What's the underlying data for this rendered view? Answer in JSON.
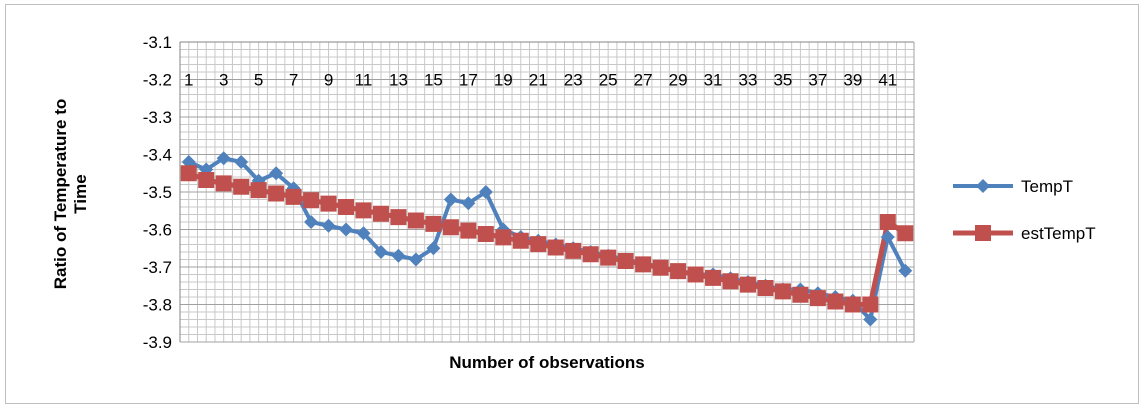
{
  "chart_data": {
    "type": "line",
    "title": "",
    "xlabel": "Number of observations",
    "ylabel": "Ratio of Temperature to Time",
    "ylim": [
      -3.9,
      -3.1
    ],
    "y_ticks": [
      "-3.1",
      "-3.2",
      "-3.3",
      "-3.4",
      "-3.5",
      "-3.6",
      "-3.7",
      "-3.8",
      "-3.9"
    ],
    "x": [
      1,
      2,
      3,
      4,
      5,
      6,
      7,
      8,
      9,
      10,
      11,
      12,
      13,
      14,
      15,
      16,
      17,
      18,
      19,
      20,
      21,
      22,
      23,
      24,
      25,
      26,
      27,
      28,
      29,
      30,
      31,
      32,
      33,
      34,
      35,
      36,
      37,
      38,
      39,
      40,
      41,
      42
    ],
    "x_tick_labels": [
      "1",
      "3",
      "5",
      "7",
      "9",
      "11",
      "13",
      "15",
      "17",
      "19",
      "21",
      "23",
      "25",
      "27",
      "29",
      "31",
      "33",
      "35",
      "37",
      "39",
      "41"
    ],
    "grid": true,
    "legend_position": "right",
    "series": [
      {
        "name": "TempT",
        "color": "#4f81bd",
        "marker": "diamond",
        "values": [
          -3.42,
          -3.44,
          -3.41,
          -3.42,
          -3.47,
          -3.45,
          -3.49,
          -3.58,
          -3.59,
          -3.6,
          -3.61,
          -3.66,
          -3.67,
          -3.68,
          -3.65,
          -3.52,
          -3.53,
          -3.5,
          -3.6,
          -3.62,
          -3.63,
          -3.64,
          -3.65,
          -3.66,
          -3.67,
          -3.68,
          -3.69,
          -3.7,
          -3.71,
          -3.72,
          -3.72,
          -3.73,
          -3.74,
          -3.75,
          -3.76,
          -3.76,
          -3.77,
          -3.78,
          -3.79,
          -3.84,
          -3.62,
          -3.71
        ]
      },
      {
        "name": "estTempT",
        "color": "#c0504d",
        "marker": "square",
        "values": [
          -3.45,
          -3.468,
          -3.477,
          -3.486,
          -3.495,
          -3.504,
          -3.513,
          -3.522,
          -3.531,
          -3.54,
          -3.549,
          -3.558,
          -3.567,
          -3.576,
          -3.585,
          -3.594,
          -3.603,
          -3.612,
          -3.621,
          -3.63,
          -3.639,
          -3.648,
          -3.657,
          -3.666,
          -3.675,
          -3.684,
          -3.693,
          -3.702,
          -3.711,
          -3.72,
          -3.729,
          -3.738,
          -3.747,
          -3.756,
          -3.765,
          -3.774,
          -3.783,
          -3.792,
          -3.8,
          -3.8,
          -3.58,
          -3.61
        ]
      }
    ]
  }
}
